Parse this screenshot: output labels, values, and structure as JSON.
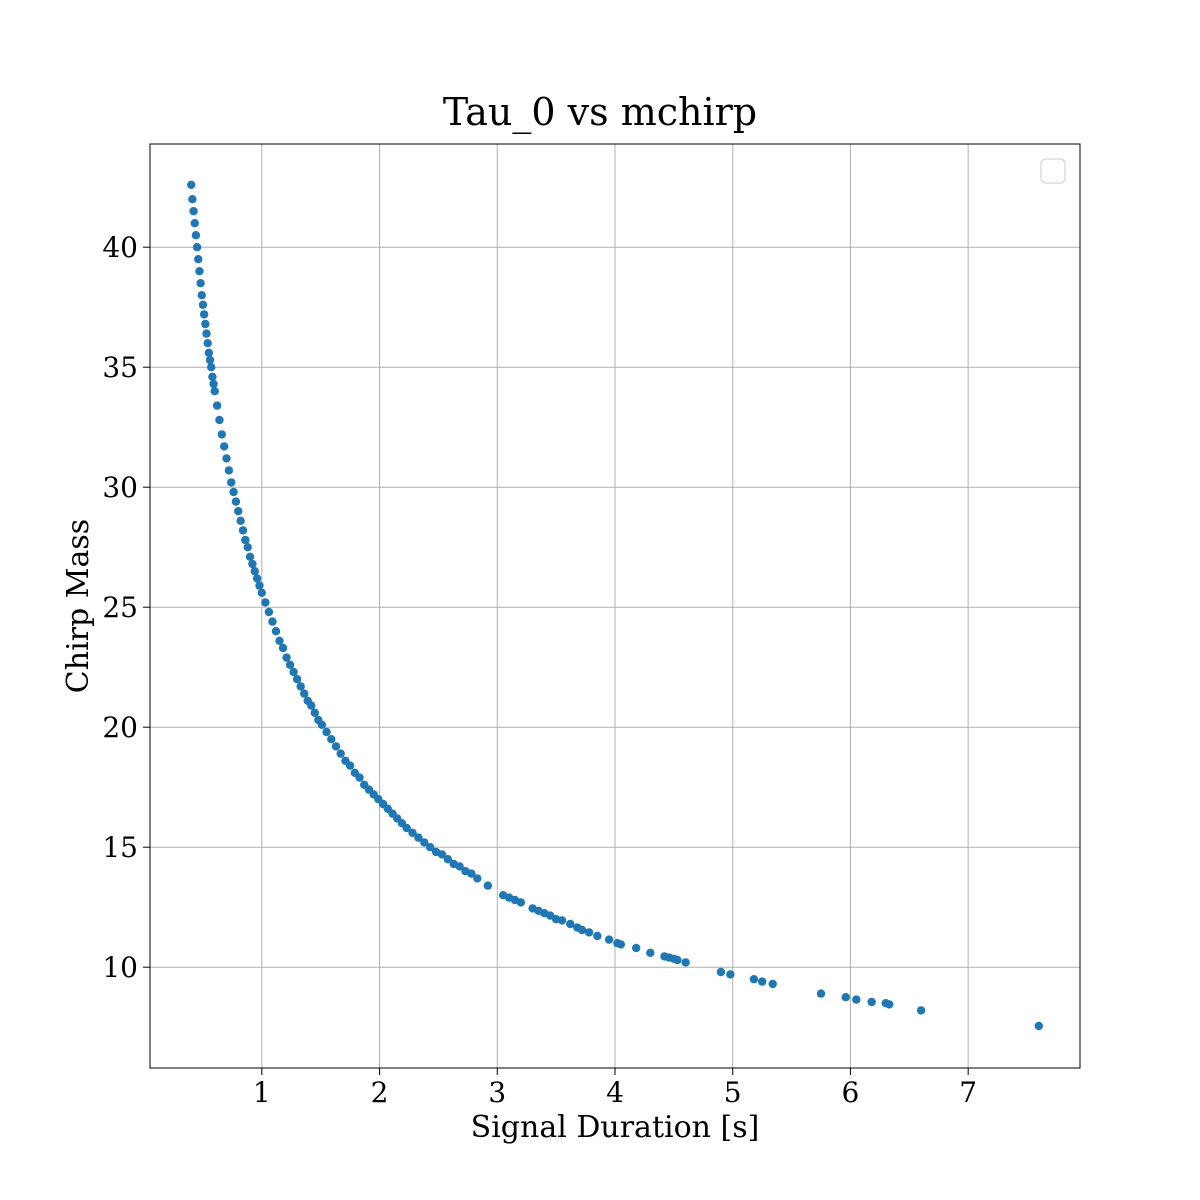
{
  "chart_data": {
    "type": "scatter",
    "title": "Tau_0 vs mchirp",
    "xlabel": "Signal Duration [s]",
    "ylabel": "Chirp Mass",
    "xlim": [
      0.05,
      7.95
    ],
    "ylim": [
      5.8,
      44.3
    ],
    "xticks": [
      1,
      2,
      3,
      4,
      5,
      6,
      7
    ],
    "yticks": [
      10,
      15,
      20,
      25,
      30,
      35,
      40
    ],
    "grid": true,
    "legend": "upper right (empty)",
    "marker_color": "#1f77b4",
    "series": [
      {
        "x": [
          0.4,
          0.41,
          0.42,
          0.43,
          0.44,
          0.45,
          0.46,
          0.47,
          0.48,
          0.49,
          0.5,
          0.51,
          0.52,
          0.53,
          0.54,
          0.55,
          0.56,
          0.57,
          0.58,
          0.59,
          0.6,
          0.62,
          0.64,
          0.66,
          0.68,
          0.7,
          0.72,
          0.74,
          0.76,
          0.78,
          0.8,
          0.82,
          0.84,
          0.86,
          0.88,
          0.9,
          0.92,
          0.94,
          0.96,
          0.98,
          1.0,
          1.03,
          1.06,
          1.09,
          1.12,
          1.15,
          1.18,
          1.21,
          1.24,
          1.27,
          1.3,
          1.33,
          1.36,
          1.39,
          1.42,
          1.45,
          1.48,
          1.51,
          1.55,
          1.59,
          1.63,
          1.67,
          1.71,
          1.75,
          1.79,
          1.83,
          1.87,
          1.91,
          1.95,
          1.99,
          2.03,
          2.07,
          2.11,
          2.15,
          2.19,
          2.23,
          2.28,
          2.33,
          2.38,
          2.43,
          2.48,
          2.53,
          2.58,
          2.63,
          2.68,
          2.73,
          2.78,
          2.83,
          2.92,
          3.05,
          3.1,
          3.15,
          3.2,
          3.3,
          3.35,
          3.4,
          3.45,
          3.5,
          3.55,
          3.62,
          3.68,
          3.72,
          3.78,
          3.85,
          3.95,
          4.02,
          4.05,
          4.18,
          4.3,
          4.42,
          4.46,
          4.5,
          4.53,
          4.6,
          4.9,
          4.98,
          5.18,
          5.25,
          5.34,
          5.75,
          5.96,
          6.05,
          6.18,
          6.3,
          6.33,
          6.6,
          7.6
        ],
        "y": [
          42.6,
          42.0,
          41.5,
          41.0,
          40.5,
          40.0,
          39.5,
          39.0,
          38.5,
          38.0,
          37.6,
          37.2,
          36.8,
          36.4,
          36.0,
          35.6,
          35.3,
          35.0,
          34.6,
          34.3,
          34.0,
          33.4,
          32.8,
          32.2,
          31.7,
          31.2,
          30.7,
          30.2,
          29.8,
          29.4,
          29.0,
          28.6,
          28.2,
          27.8,
          27.5,
          27.1,
          26.8,
          26.5,
          26.2,
          25.9,
          25.6,
          25.2,
          24.8,
          24.4,
          24.0,
          23.6,
          23.3,
          22.9,
          22.6,
          22.3,
          22.0,
          21.7,
          21.4,
          21.1,
          20.9,
          20.6,
          20.3,
          20.1,
          19.8,
          19.5,
          19.2,
          18.9,
          18.6,
          18.4,
          18.1,
          17.9,
          17.6,
          17.4,
          17.2,
          17.0,
          16.8,
          16.6,
          16.4,
          16.2,
          16.0,
          15.8,
          15.6,
          15.4,
          15.2,
          15.0,
          14.8,
          14.7,
          14.5,
          14.3,
          14.2,
          14.0,
          13.9,
          13.7,
          13.4,
          13.0,
          12.9,
          12.8,
          12.7,
          12.45,
          12.35,
          12.25,
          12.15,
          12.0,
          11.95,
          11.8,
          11.65,
          11.55,
          11.45,
          11.3,
          11.15,
          11.0,
          10.95,
          10.8,
          10.6,
          10.45,
          10.4,
          10.35,
          10.3,
          10.2,
          9.8,
          9.7,
          9.5,
          9.4,
          9.3,
          8.9,
          8.75,
          8.65,
          8.55,
          8.5,
          8.45,
          8.2,
          7.55
        ]
      }
    ]
  }
}
